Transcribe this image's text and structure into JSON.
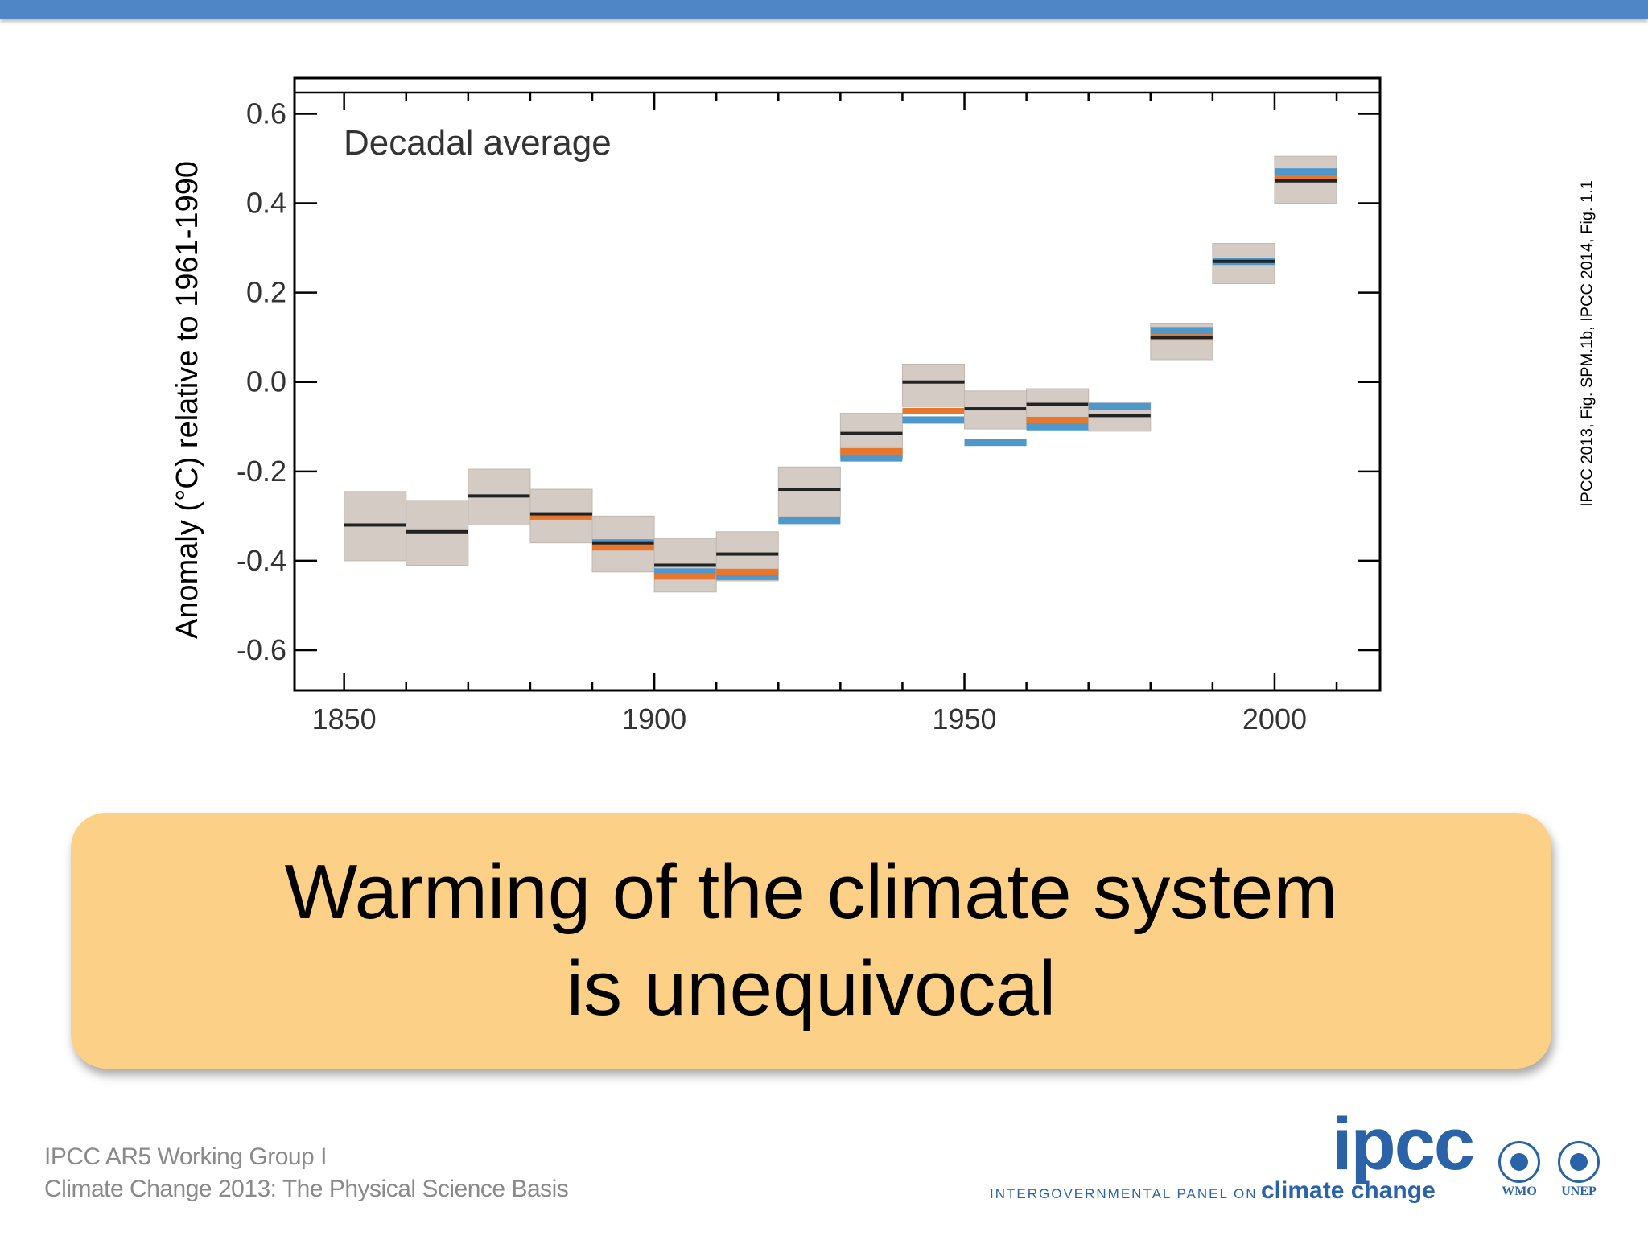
{
  "header": {
    "bar_color": "#4f86c6"
  },
  "chart_data": {
    "type": "decadal-bar-uncertainty",
    "annotation": "Decadal average",
    "ylabel": "Anomaly (°C) relative to 1961-1990",
    "xlabel": "",
    "xlim": [
      1842,
      2017
    ],
    "ylim": [
      -0.69,
      0.68
    ],
    "x_ticks": [
      1850,
      1900,
      1950,
      2000
    ],
    "y_ticks": [
      0.6,
      0.4,
      0.2,
      0.0,
      -0.2,
      -0.4,
      -0.6
    ],
    "y_tick_labels": [
      "0.6",
      "0.4",
      "0.2",
      "0.0",
      "-0.2",
      "-0.4",
      "-0.6"
    ],
    "grid": false,
    "colors": {
      "main": "#222222",
      "orange": "#e8762c",
      "blue": "#4f98cc",
      "band": "#d4ccc4"
    },
    "decades": [
      {
        "start": 1850,
        "end": 1860,
        "main": -0.32,
        "low": -0.4,
        "high": -0.245
      },
      {
        "start": 1860,
        "end": 1870,
        "main": -0.335,
        "low": -0.41,
        "high": -0.265
      },
      {
        "start": 1870,
        "end": 1880,
        "main": -0.255,
        "low": -0.32,
        "high": -0.195
      },
      {
        "start": 1880,
        "end": 1890,
        "main": -0.295,
        "low": -0.36,
        "high": -0.24,
        "orange": -0.3,
        "blue": -0.3
      },
      {
        "start": 1890,
        "end": 1900,
        "main": -0.36,
        "low": -0.425,
        "high": -0.3,
        "orange": -0.37,
        "blue": -0.36
      },
      {
        "start": 1900,
        "end": 1910,
        "main": -0.41,
        "low": -0.47,
        "high": -0.35,
        "orange": -0.435,
        "blue": -0.425
      },
      {
        "start": 1910,
        "end": 1920,
        "main": -0.385,
        "low": -0.445,
        "high": -0.335,
        "orange": -0.425,
        "blue": -0.435
      },
      {
        "start": 1920,
        "end": 1930,
        "main": -0.24,
        "low": -0.3,
        "high": -0.19,
        "blue": -0.31
      },
      {
        "start": 1930,
        "end": 1940,
        "main": -0.115,
        "low": -0.17,
        "high": -0.07,
        "orange": -0.155,
        "blue": -0.17
      },
      {
        "start": 1940,
        "end": 1950,
        "main": 0.0,
        "low": -0.055,
        "high": 0.04,
        "orange": -0.065,
        "blue": -0.085
      },
      {
        "start": 1950,
        "end": 1960,
        "main": -0.06,
        "low": -0.105,
        "high": -0.02,
        "blue": -0.135
      },
      {
        "start": 1960,
        "end": 1970,
        "main": -0.05,
        "low": -0.095,
        "high": -0.015,
        "orange": -0.085,
        "blue": -0.1
      },
      {
        "start": 1970,
        "end": 1980,
        "main": -0.075,
        "low": -0.11,
        "high": -0.045,
        "blue": -0.055
      },
      {
        "start": 1980,
        "end": 1990,
        "main": 0.1,
        "low": 0.05,
        "high": 0.13,
        "orange": 0.1,
        "blue": 0.115
      },
      {
        "start": 1990,
        "end": 2000,
        "main": 0.27,
        "low": 0.22,
        "high": 0.31,
        "blue": 0.27
      },
      {
        "start": 2000,
        "end": 2010,
        "main": 0.45,
        "low": 0.4,
        "high": 0.505,
        "orange": 0.455,
        "blue": 0.47
      }
    ]
  },
  "source_note": "IPCC 2013, Fig. SPM.1b, IPCC 2014, Fig. 1.1",
  "callout": {
    "line1": "Warming of the climate system",
    "line2": "is unequivocal"
  },
  "footer": {
    "line1": "IPCC AR5 Working Group I",
    "line2": "Climate Change 2013:  The Physical Science Basis",
    "logo_text": "ipcc",
    "tagline_small": "INTERGOVERNMENTAL PANEL ON",
    "tagline_big": "climate change",
    "partner1": "WMO",
    "partner2": "UNEP"
  }
}
